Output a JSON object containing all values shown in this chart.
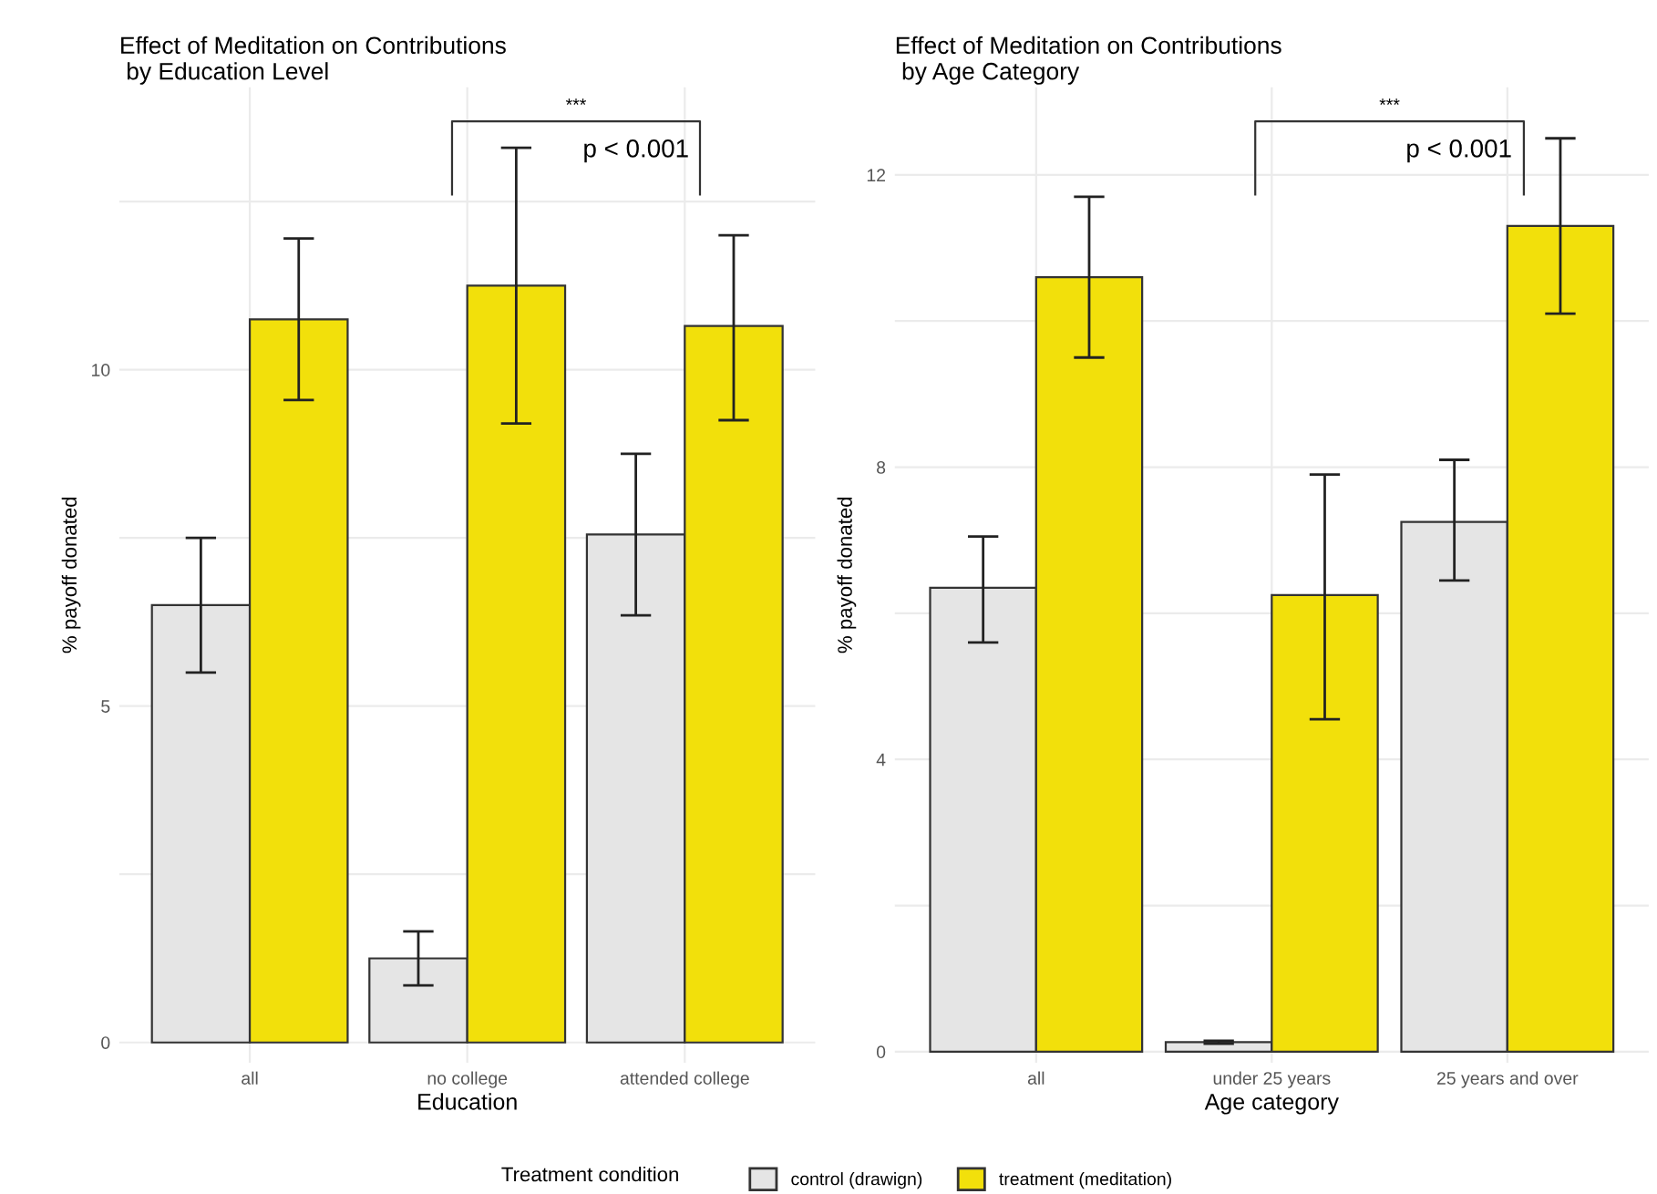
{
  "chart_data": [
    {
      "type": "bar",
      "title": "Effect of Meditation on Contributions\n by Education Level",
      "xlabel": "Education",
      "ylabel": "% payoff donated",
      "legend_title": "Treatment condition",
      "categories": [
        "all",
        "no college",
        "attended college"
      ],
      "series": [
        {
          "name": "control (drawign)",
          "color": "#e5e5e5",
          "values": [
            6.5,
            1.25,
            7.55
          ],
          "errors": [
            [
              5.5,
              7.5
            ],
            [
              0.85,
              1.65
            ],
            [
              6.35,
              8.75
            ]
          ]
        },
        {
          "name": "treatment (meditation)",
          "color": "#f2e00b",
          "values": [
            10.75,
            11.25,
            10.65
          ],
          "errors": [
            [
              9.55,
              11.95
            ],
            [
              9.2,
              13.3
            ],
            [
              9.25,
              12.0
            ]
          ]
        }
      ],
      "ylim": [
        -0.3,
        14.2
      ],
      "yticks": [
        0,
        {
          "value": 2.5,
          "label": null
        },
        5,
        {
          "value": 7.5,
          "label": null
        },
        10,
        {
          "value": 12.5,
          "label": null
        }
      ],
      "annotations": [
        "***",
        "p < 0.001"
      ],
      "grid": true,
      "legend": "bottom"
    },
    {
      "type": "bar",
      "title": "Effect of Meditation on Contributions\n by Age Category",
      "xlabel": "Age category",
      "ylabel": "% payoff donated",
      "categories": [
        "all",
        "under 25 years",
        "25 years and over"
      ],
      "series": [
        {
          "color": "#e5e5e5",
          "values": [
            6.35,
            0.13,
            7.25
          ],
          "errors": [
            [
              5.6,
              7.05
            ],
            [
              0.11,
              0.15
            ],
            [
              6.45,
              8.1
            ]
          ]
        },
        {
          "color": "#f2e00b",
          "values": [
            10.6,
            6.25,
            11.3
          ],
          "errors": [
            [
              9.5,
              11.7
            ],
            [
              4.55,
              7.9
            ],
            [
              10.1,
              12.5
            ]
          ]
        }
      ],
      "ylim": [
        -0.15,
        13.2
      ],
      "yticks": [
        0,
        {
          "value": 2,
          "label": null
        },
        4,
        {
          "value": 6,
          "label": null
        },
        8,
        {
          "value": 10,
          "label": null
        },
        12
      ],
      "annotations": [
        "***",
        "p < 0.001"
      ],
      "grid": true
    }
  ]
}
